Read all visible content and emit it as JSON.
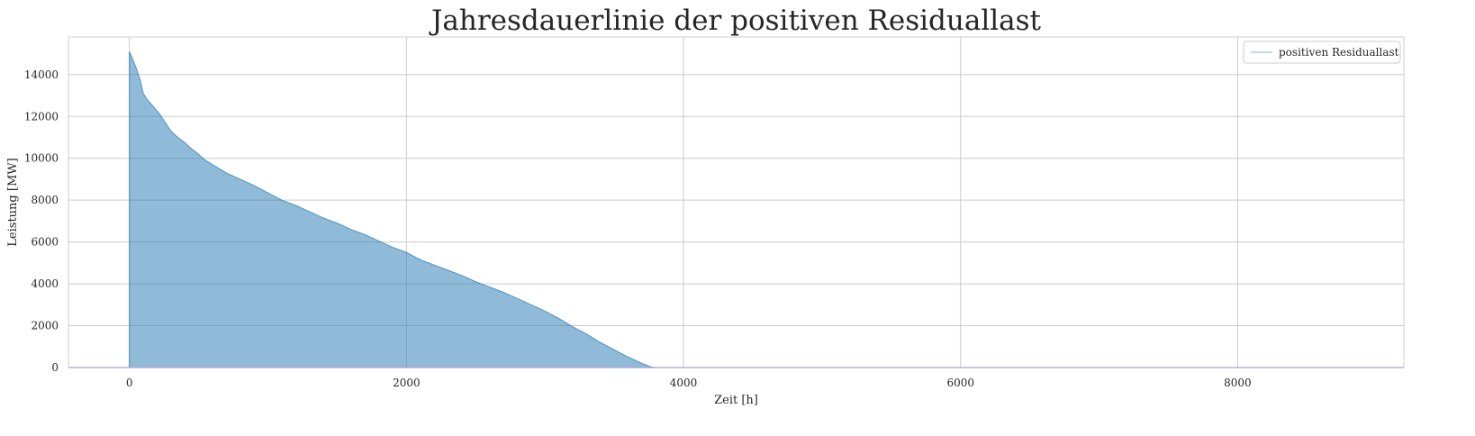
{
  "chart_data": {
    "type": "area",
    "title": "Jahresdauerlinie der positiven Residuallast",
    "xlabel": "Zeit [h]",
    "ylabel": "Leistung [MW]",
    "xlim": [
      -440,
      9200
    ],
    "ylim": [
      0,
      15800
    ],
    "xticks": [
      0,
      2000,
      4000,
      6000,
      8000
    ],
    "yticks": [
      0,
      2000,
      4000,
      6000,
      8000,
      10000,
      12000,
      14000
    ],
    "grid": true,
    "legend_position": "top-right",
    "series": [
      {
        "name": "positiven Residuallast",
        "color": "#1f77b4",
        "x": [
          0,
          20,
          50,
          80,
          100,
          130,
          170,
          220,
          260,
          300,
          350,
          400,
          440,
          480,
          550,
          600,
          650,
          700,
          750,
          800,
          900,
          1000,
          1100,
          1200,
          1300,
          1400,
          1500,
          1600,
          1700,
          1800,
          1900,
          2000,
          2100,
          2200,
          2300,
          2400,
          2500,
          2600,
          2700,
          2800,
          2900,
          3000,
          3100,
          3200,
          3300,
          3400,
          3500,
          3600,
          3700,
          3750,
          3780,
          3800,
          8760
        ],
        "y": [
          15100,
          14800,
          14300,
          13700,
          13100,
          12800,
          12500,
          12100,
          11700,
          11300,
          11000,
          10750,
          10500,
          10300,
          9900,
          9700,
          9500,
          9300,
          9150,
          9000,
          8700,
          8350,
          8000,
          7750,
          7450,
          7150,
          6900,
          6600,
          6350,
          6050,
          5750,
          5500,
          5150,
          4900,
          4650,
          4400,
          4100,
          3850,
          3600,
          3300,
          3000,
          2700,
          2350,
          1950,
          1600,
          1200,
          850,
          500,
          200,
          60,
          10,
          0,
          0
        ]
      }
    ],
    "baseline": {
      "color": "#0000ff",
      "y": 0
    }
  }
}
